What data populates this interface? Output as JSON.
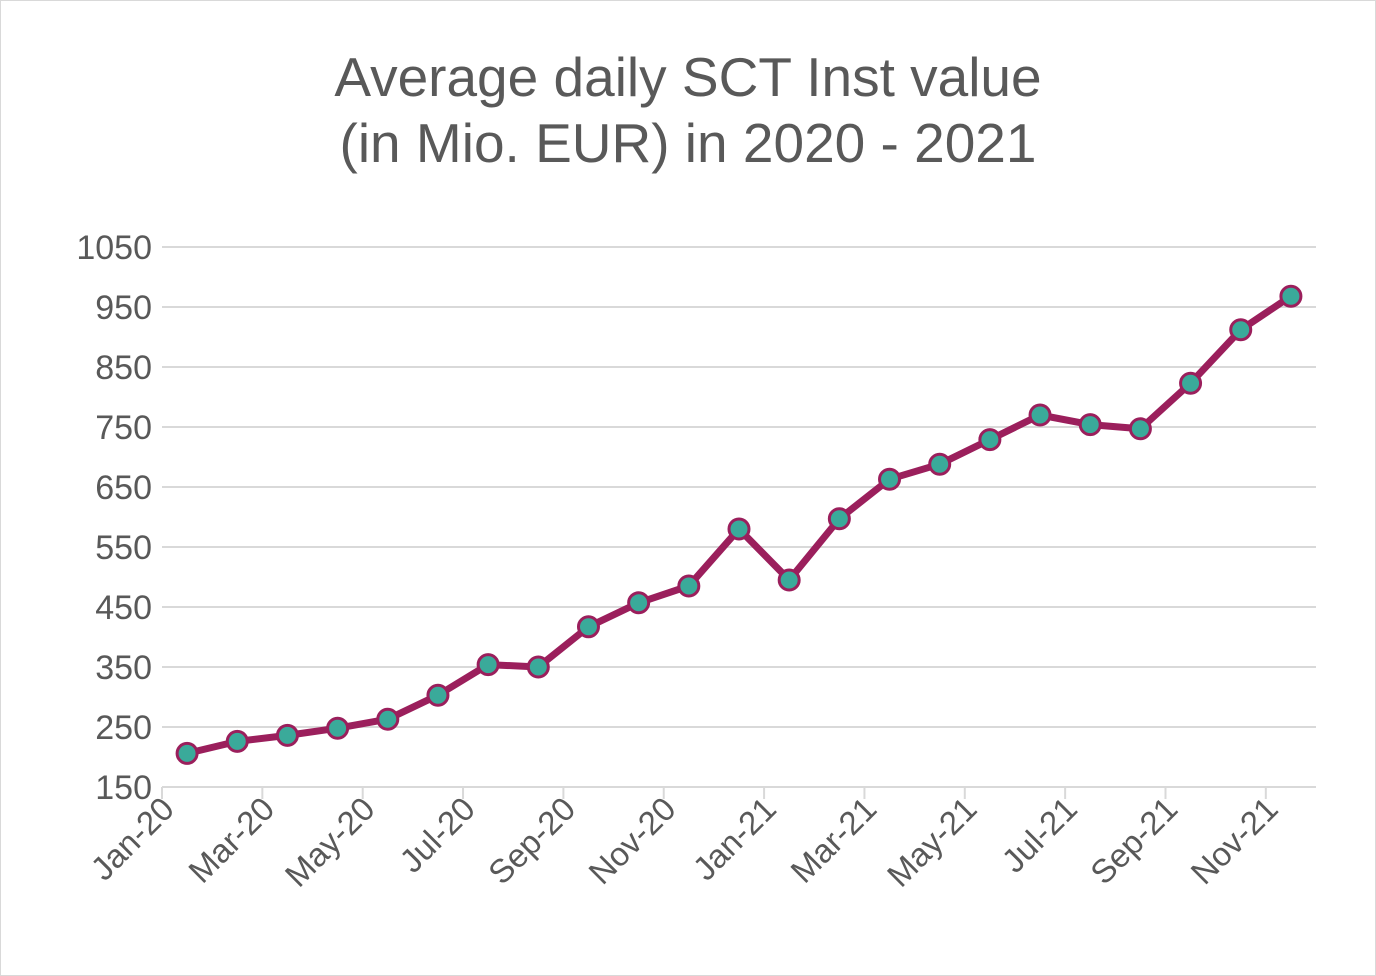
{
  "chart_data": {
    "type": "line",
    "title_line1": "Average daily SCT Inst value",
    "title_line2": "(in Mio. EUR) in 2020 - 2021",
    "xlabel": "",
    "ylabel": "",
    "ylim": [
      150,
      1050
    ],
    "y_ticks": [
      150,
      250,
      350,
      450,
      550,
      650,
      750,
      850,
      950,
      1050
    ],
    "x_tick_labels": [
      "Jan-20",
      "Mar-20",
      "May-20",
      "Jul-20",
      "Sep-20",
      "Nov-20",
      "Jan-21",
      "Mar-21",
      "May-21",
      "Jul-21",
      "Sep-21",
      "Nov-21"
    ],
    "categories": [
      "Jan-20",
      "Feb-20",
      "Mar-20",
      "Apr-20",
      "May-20",
      "Jun-20",
      "Jul-20",
      "Aug-20",
      "Sep-20",
      "Oct-20",
      "Nov-20",
      "Dec-20",
      "Jan-21",
      "Feb-21",
      "Mar-21",
      "Apr-21",
      "May-21",
      "Jun-21",
      "Jul-21",
      "Aug-21",
      "Sep-21",
      "Oct-21",
      "Nov-21"
    ],
    "values": [
      206,
      226,
      236,
      248,
      263,
      303,
      354,
      350,
      417,
      457,
      485,
      580,
      495,
      597,
      663,
      688,
      729,
      770,
      754,
      747,
      823,
      912,
      968
    ],
    "grid": true,
    "colors": {
      "line": "#9b1f5c",
      "marker_fill": "#3aaa9a",
      "marker_edge": "#9b1f5c",
      "grid": "#d9d9d9",
      "text": "#595959"
    }
  }
}
